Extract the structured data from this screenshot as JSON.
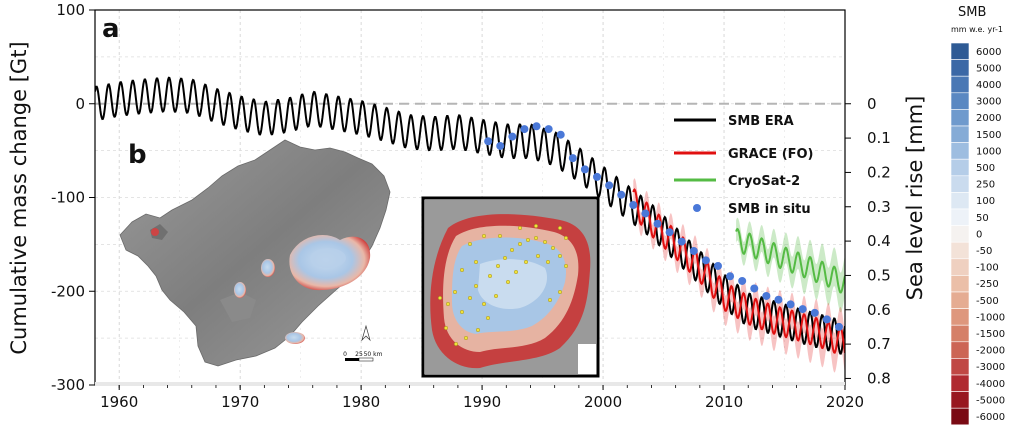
{
  "chart_data": {
    "type": "line",
    "panel_labels": [
      "a",
      "b"
    ],
    "xlabel": "",
    "ylabel": "Cumulative mass change [Gt]",
    "y2label": "Sea level rise [mm]",
    "xlim": [
      1958,
      2020
    ],
    "ylim": [
      -300,
      100
    ],
    "xticks": [
      "1960",
      "1970",
      "1980",
      "1990",
      "2000",
      "2010",
      "2020"
    ],
    "yticks": [
      "100",
      "0",
      "-100",
      "-200",
      "-300"
    ],
    "y2ticks": [
      "0",
      "0.1",
      "0.2",
      "0.3",
      "0.4",
      "0.5",
      "0.6",
      "0.7",
      "0.8"
    ],
    "legend_position": "right",
    "series": [
      {
        "name": "SMB ERA",
        "color": "#000000",
        "x": [
          1958,
          1960,
          1962,
          1964,
          1966,
          1968,
          1970,
          1972,
          1974,
          1976,
          1978,
          1980,
          1982,
          1984,
          1986,
          1988,
          1990,
          1992,
          1994,
          1996,
          1998,
          2000,
          2002,
          2004,
          2006,
          2008,
          2010,
          2012,
          2014,
          2016,
          2018,
          2020
        ],
        "y": [
          0,
          5,
          8,
          10,
          8,
          -2,
          -10,
          -16,
          -12,
          -5,
          -10,
          -15,
          -22,
          -30,
          -32,
          -30,
          -35,
          -40,
          -40,
          -48,
          -65,
          -85,
          -105,
          -125,
          -150,
          -175,
          -200,
          -220,
          -228,
          -236,
          -243,
          -250
        ],
        "seasonal_amplitude": 18
      },
      {
        "name": "GRACE (FO)",
        "color": "#e01010",
        "x": [
          2002.5,
          2004,
          2006,
          2008,
          2010,
          2012,
          2014,
          2016,
          2018,
          2020
        ],
        "y": [
          -105,
          -126,
          -150,
          -175,
          -205,
          -220,
          -230,
          -237,
          -245,
          -255
        ],
        "seasonal_amplitude": 15,
        "uncertainty": 12
      },
      {
        "name": "CryoSat-2",
        "color": "#55bb44",
        "x": [
          2011,
          2012,
          2013,
          2014,
          2015,
          2016,
          2017,
          2018,
          2019,
          2020
        ],
        "y": [
          -145,
          -150,
          -155,
          -160,
          -165,
          -170,
          -175,
          -180,
          -185,
          -192
        ],
        "seasonal_amplitude": 12,
        "uncertainty": 12
      },
      {
        "name": "SMB in situ",
        "color": "#4a78d8",
        "x": [
          1990.5,
          1991.5,
          1992.5,
          1993.5,
          1994.5,
          1995.5,
          1996.5,
          1997.5,
          1998.5,
          1999.5,
          2000.5,
          2001.5,
          2002.5,
          2003.5,
          2004.5,
          2005.5,
          2006.5,
          2007.5,
          2008.5,
          2009.5,
          2010.5,
          2011.5,
          2012.5,
          2013.5,
          2014.5,
          2015.5,
          2016.5,
          2017.5,
          2018.5,
          2019.5
        ],
        "y": [
          -40,
          -45,
          -35,
          -27,
          -24,
          -27,
          -33,
          -58,
          -70,
          -78,
          -87,
          -97,
          -108,
          -117,
          -128,
          -137,
          -147,
          -157,
          -167,
          -173,
          -184,
          -189,
          -197,
          -205,
          -209,
          -214,
          -219,
          -223,
          -230,
          -238
        ]
      }
    ],
    "colorbar": {
      "title": "SMB",
      "unit": "mm w.e. yr-1",
      "labels": [
        "6000",
        "5000",
        "4000",
        "3000",
        "2000",
        "1500",
        "1000",
        "500",
        "250",
        "100",
        "50",
        "0",
        "-50",
        "-100",
        "-250",
        "-500",
        "-1000",
        "-1500",
        "-2000",
        "-3000",
        "-4000",
        "-5000",
        "-6000"
      ],
      "colors": [
        "#2e5a94",
        "#3b68a6",
        "#4a78b5",
        "#5a88c2",
        "#6f9acd",
        "#85abd6",
        "#9dbde0",
        "#b5cde8",
        "#cadbee",
        "#dde8f3",
        "#edf2f8",
        "#f5f2f0",
        "#f3e2d8",
        "#efd0c0",
        "#ebbfa8",
        "#e5ac92",
        "#de977d",
        "#d58068",
        "#cc6555",
        "#c04844",
        "#b02a30",
        "#981821",
        "#7a0a14"
      ]
    },
    "inset_scale": {
      "labels": [
        "0",
        "25",
        "50 km"
      ]
    }
  }
}
